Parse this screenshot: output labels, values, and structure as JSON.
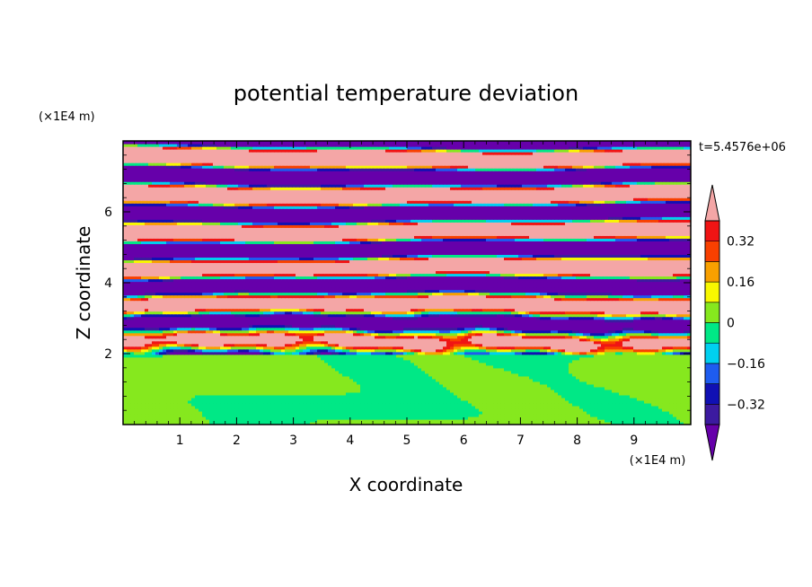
{
  "chart_data": {
    "type": "heatmap",
    "title": "potential temperature deviation",
    "xlabel": "X coordinate",
    "ylabel": "Z coordinate",
    "x_unit_label": "(×1E4 m)",
    "y_unit_label": "(×1E4 m)",
    "time_label": "t=5.4576e+06",
    "xlim": [
      0,
      10
    ],
    "ylim": [
      0,
      8
    ],
    "x_ticks": [
      1,
      2,
      3,
      4,
      5,
      6,
      7,
      8,
      9
    ],
    "y_ticks": [
      2,
      4,
      6
    ],
    "colorbar": {
      "levels": [
        -0.4,
        -0.32,
        -0.24,
        -0.16,
        -0.08,
        0,
        0.08,
        0.16,
        0.24,
        0.32,
        0.4
      ],
      "colors": [
        "#6600aa",
        "#3c1aa0",
        "#1010b4",
        "#1e5cf0",
        "#00d0f0",
        "#00e886",
        "#86e81e",
        "#f8f800",
        "#f8a000",
        "#f84000",
        "#f01414",
        "#f4a6a6"
      ],
      "tick_labels": [
        "0.32",
        "0.16",
        "0",
        "−0.16",
        "−0.32"
      ],
      "tick_values": [
        0.32,
        0.16,
        0,
        -0.16,
        -0.32
      ]
    }
  }
}
